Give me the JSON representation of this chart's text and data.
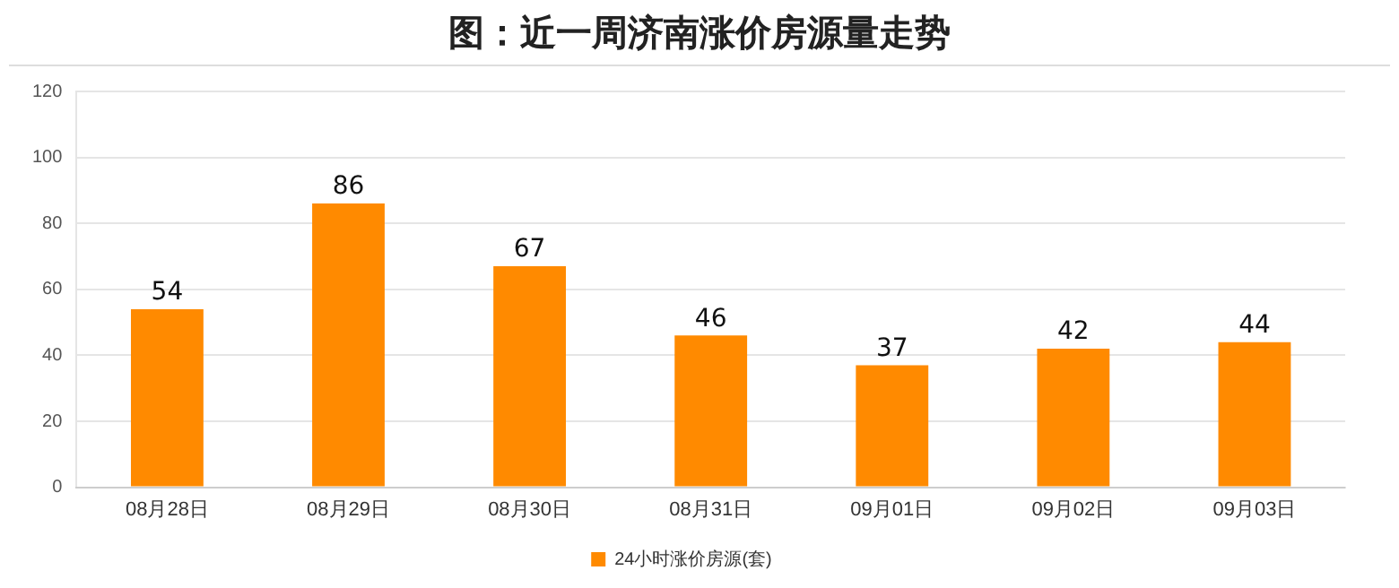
{
  "chart_data": {
    "type": "bar",
    "title": "图：近一周济南涨价房源量走势",
    "categories": [
      "08月28日",
      "08月29日",
      "08月30日",
      "08月31日",
      "09月01日",
      "09月02日",
      "09月03日"
    ],
    "series": [
      {
        "name": "24小时涨价房源(套)",
        "color": "#ff8a00",
        "values": [
          54,
          86,
          67,
          46,
          37,
          42,
          44
        ]
      }
    ],
    "ylim": [
      0,
      120
    ],
    "yticks": [
      0,
      20,
      40,
      60,
      80,
      100,
      120
    ],
    "grid": "y",
    "legend": "bottom",
    "data_labels": true
  }
}
